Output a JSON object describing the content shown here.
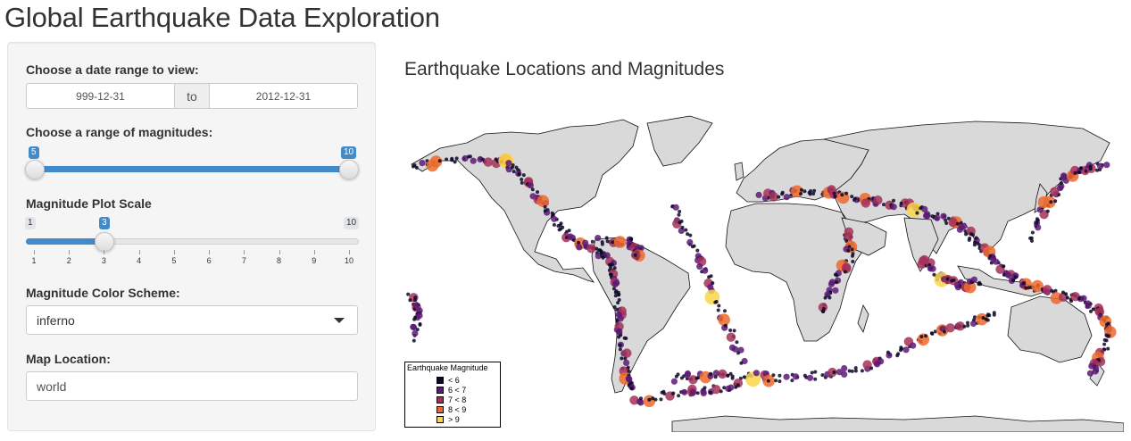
{
  "app_title": "Global Earthquake Data Exploration",
  "sidebar": {
    "date_range": {
      "label": "Choose a date range to view:",
      "start": "999-12-31",
      "separator": "to",
      "end": "2012-12-31"
    },
    "magnitude_range": {
      "label": "Choose a range of magnitudes:",
      "min": 5,
      "max": 10,
      "selected_low": 5,
      "selected_high": 10,
      "low_label": "5",
      "high_label": "10"
    },
    "plot_scale": {
      "label": "Magnitude Plot Scale",
      "min": 1,
      "max": 10,
      "value": 3,
      "min_label": "1",
      "max_label": "10",
      "value_label": "3",
      "ticks": [
        "1",
        "2",
        "3",
        "4",
        "5",
        "6",
        "7",
        "8",
        "9",
        "10"
      ]
    },
    "color_scheme": {
      "label": "Magnitude Color Scheme:",
      "selected": "inferno"
    },
    "map_location": {
      "label": "Map Location:",
      "value": "world"
    }
  },
  "main": {
    "plot_title": "Earthquake Locations and Magnitudes",
    "legend": {
      "title": "Earthquake Magnitude",
      "items": [
        {
          "label": "< 6",
          "color": "#0d0829"
        },
        {
          "label": "6 < 7",
          "color": "#5c1a76"
        },
        {
          "label": "7 < 8",
          "color": "#a53159"
        },
        {
          "label": "8 < 9",
          "color": "#ed6a2b"
        },
        {
          "label": "> 9",
          "color": "#f9d64a"
        }
      ]
    }
  },
  "colors": {
    "accent": "#428bca",
    "land": "#d9d9d9",
    "ocean": "#ffffff"
  }
}
